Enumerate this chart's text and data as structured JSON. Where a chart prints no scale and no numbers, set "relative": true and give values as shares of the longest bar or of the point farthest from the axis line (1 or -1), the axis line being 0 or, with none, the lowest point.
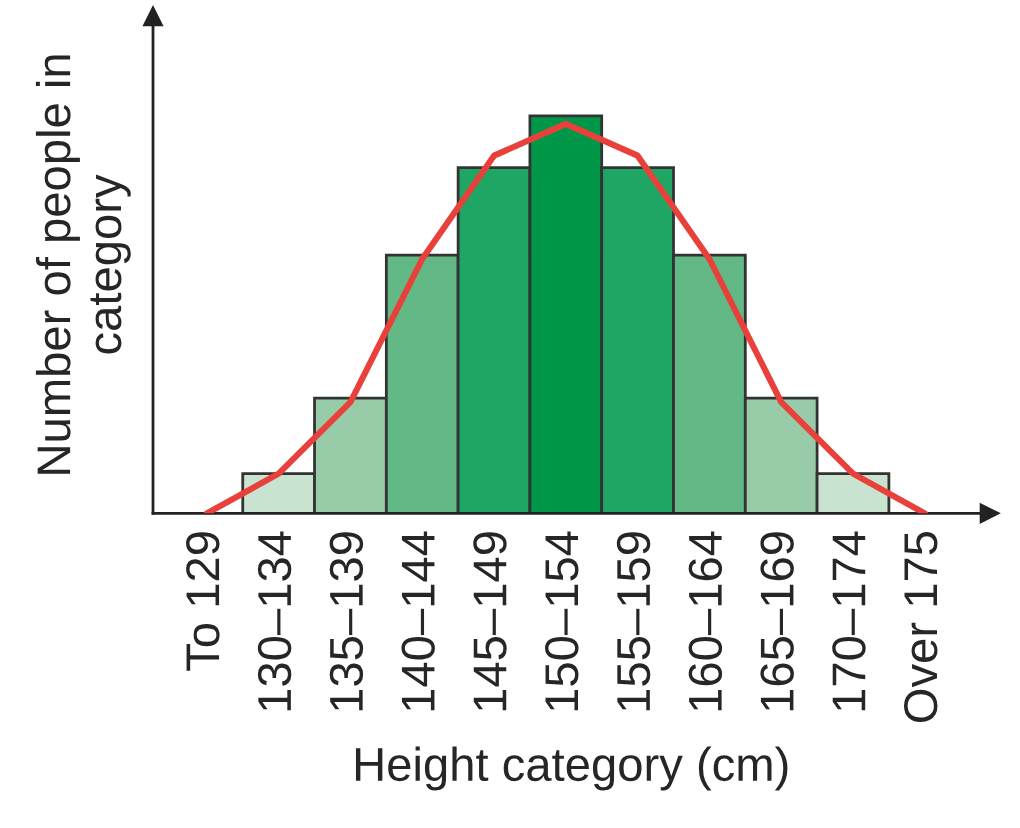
{
  "chart_data": {
    "type": "bar",
    "relative": true,
    "xlabel": "Height category (cm)",
    "ylabel": "Number of people in\ncategory",
    "categories": [
      "To 129",
      "130–134",
      "135–139",
      "140–144",
      "145–149",
      "150–154",
      "155–159",
      "160–164",
      "165–169",
      "170–174",
      "Over 175"
    ],
    "series": [
      {
        "values": [
          null,
          0.1,
          0.29,
          0.65,
          0.87,
          1,
          0.87,
          0.65,
          0.29,
          0.1,
          null
        ],
        "colors": [
          null,
          "#c8e4d0",
          "#98cca9",
          "#62b985",
          "#1fa664",
          "#009848",
          "#1fa664",
          "#62b985",
          "#98cca9",
          "#c8e4d0",
          null
        ]
      },
      {
        "type": "line",
        "color": "#e8413c",
        "values": [
          0,
          0.1,
          0.28,
          0.64,
          0.9,
          0.98,
          0.9,
          0.64,
          0.28,
          0.1,
          0
        ]
      }
    ],
    "grid": false,
    "legend": false
  }
}
